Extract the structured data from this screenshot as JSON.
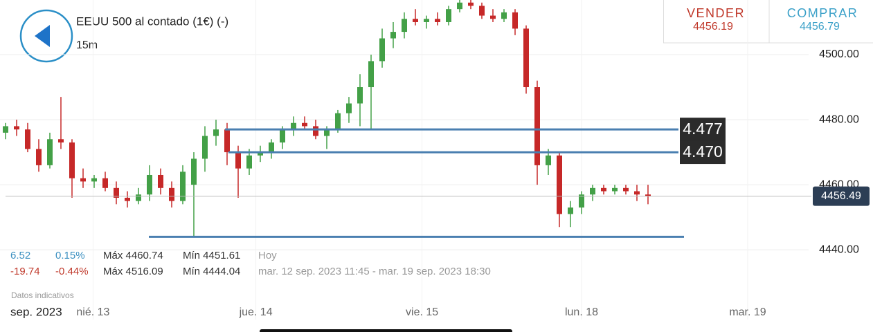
{
  "header": {
    "title": "EEUU 500 al contado (1€) (-)",
    "interval": "15m"
  },
  "quote": {
    "sell_label": "VENDER",
    "sell_price": "4456.19",
    "buy_label": "COMPRAR",
    "buy_price": "4456.79"
  },
  "chart_data": {
    "type": "candlestick",
    "open": [
      4476,
      4478,
      4477,
      4471,
      4466,
      4474,
      4473,
      4462,
      4461,
      4462,
      4459,
      4456,
      4455,
      4457,
      4463,
      4459,
      4455,
      4460,
      4468,
      4475,
      4477,
      4470,
      4465,
      4469,
      4470,
      4473,
      4477,
      4479,
      4478,
      4475,
      4477,
      4482,
      4485,
      4490,
      4498,
      4505,
      4507,
      4511,
      4510,
      4511,
      4510,
      4514,
      4516,
      4515,
      4512,
      4511,
      4513,
      4508,
      4490,
      4466,
      4469,
      4451,
      4453,
      4457,
      4459,
      4458,
      4459,
      4458,
      4457
    ],
    "high": [
      4479,
      4480,
      4479,
      4474,
      4476,
      4487,
      4474,
      4465,
      4463,
      4464,
      4461,
      4458,
      4459,
      4466,
      4465,
      4461,
      4466,
      4470,
      4478,
      4480,
      4479,
      4472,
      4471,
      4472,
      4474,
      4478,
      4481,
      4481,
      4480,
      4478,
      4483,
      4487,
      4494,
      4500,
      4508,
      4510,
      4513,
      4514,
      4512,
      4513,
      4515,
      4517,
      4517,
      4516,
      4514,
      4514,
      4514,
      4509,
      4492,
      4471,
      4470,
      4455,
      4458,
      4460,
      4460,
      4460,
      4460,
      4460,
      4460
    ],
    "low": [
      4474,
      4475,
      4470,
      4464,
      4465,
      4471,
      4456,
      4459,
      4459,
      4458,
      4454,
      4453,
      4454,
      4455,
      4457,
      4453,
      4454,
      4444,
      4464,
      4472,
      4466,
      4456,
      4463,
      4467,
      4468,
      4471,
      4475,
      4477,
      4474,
      4471,
      4476,
      4479,
      4478,
      4477,
      4496,
      4502,
      4505,
      4509,
      4508,
      4509,
      4509,
      4513,
      4514,
      4511,
      4510,
      4510,
      4506,
      4488,
      4460,
      4463,
      4447,
      4447,
      4451,
      4455,
      4457,
      4457,
      4457,
      4455,
      4454
    ],
    "close": [
      4478,
      4477,
      4471,
      4466,
      4474,
      4473,
      4462,
      4461,
      4462,
      4459,
      4456,
      4455,
      4457,
      4463,
      4459,
      4455,
      4464,
      4468,
      4475,
      4477,
      4470,
      4465,
      4469,
      4470,
      4473,
      4477,
      4479,
      4478,
      4475,
      4477,
      4482,
      4485,
      4490,
      4498,
      4505,
      4507,
      4511,
      4510,
      4511,
      4510,
      4514,
      4516,
      4515,
      4512,
      4511,
      4513,
      4508,
      4490,
      4466,
      4469,
      4451,
      4453,
      4457,
      4459,
      4458,
      4459,
      4458,
      4457,
      4456.49
    ],
    "colors": {
      "up": "#43a047",
      "down": "#c62828",
      "level": "#4a7fb0"
    },
    "xlim": [
      -0.5,
      72.5
    ],
    "ylim": [
      4432.8,
      4516.8
    ],
    "yticks": [
      {
        "value": 4440,
        "label": "4440.00"
      },
      {
        "value": 4460,
        "label": "4460.00"
      },
      {
        "value": 4480,
        "label": "4480.00"
      },
      {
        "value": 4500,
        "label": "4500.00"
      }
    ],
    "xticks": [
      {
        "value": 7.9,
        "label": "nié. 13"
      },
      {
        "value": 22.6,
        "label": "jue. 14"
      },
      {
        "value": 37.6,
        "label": "vie. 15"
      },
      {
        "value": 52,
        "label": "lun. 18"
      },
      {
        "value": 67,
        "label": "mar. 19"
      }
    ],
    "x_period_label": "sep. 2023",
    "levels": [
      {
        "value": 4477,
        "label": "4.477"
      },
      {
        "value": 4470,
        "label": "4.470"
      },
      {
        "value": 4444
      }
    ],
    "current_price": 4456.49,
    "grid": true
  },
  "stats": {
    "rows": [
      [
        "6.52",
        "0.15%",
        "Máx 4460.74",
        "Mín 4451.61",
        "Hoy"
      ],
      [
        "-19.74",
        "-0.44%",
        "Máx 4516.09",
        "Mín 4444.04",
        "mar. 12 sep. 2023 11:45 - mar. 19 sep. 2023 18:30"
      ]
    ],
    "note": "Datos indicativos"
  }
}
